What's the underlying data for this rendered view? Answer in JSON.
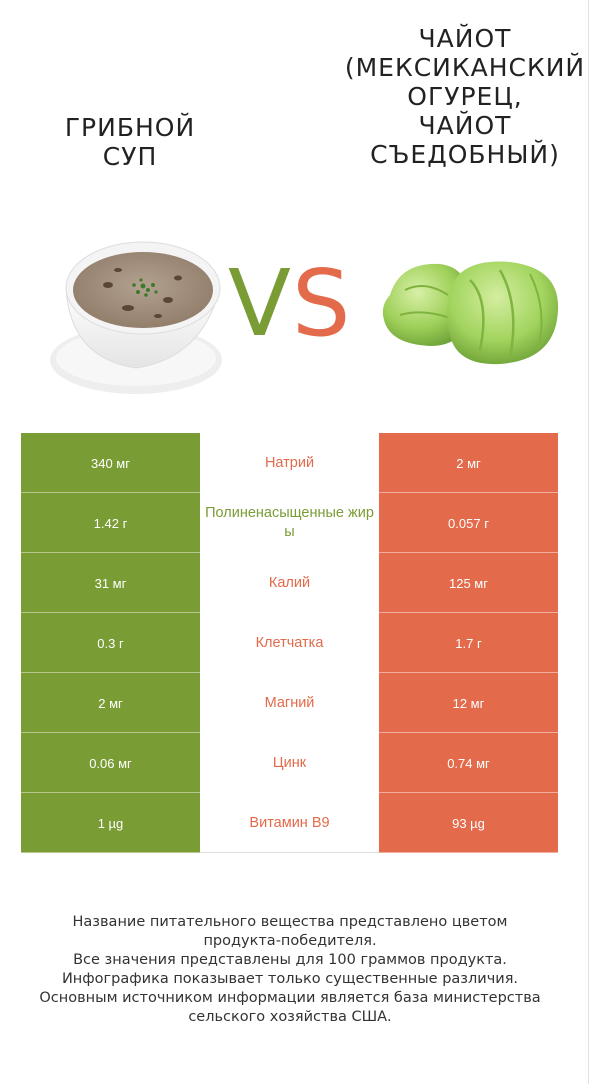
{
  "left_product": {
    "title_lines": [
      "ГРИБНОЙ",
      "СУП"
    ],
    "color": "#7a9c35",
    "image_icon": "soup-bowl-image"
  },
  "right_product": {
    "title_lines": [
      "ЧАЙОТ",
      "(МЕКСИКАНСКИЙ",
      "ОГУРЕЦ,",
      "ЧАЙОТ",
      "СЪЕДОБНЫЙ)"
    ],
    "color": "#e36a4a",
    "image_icon": "chayote-image"
  },
  "vs": {
    "v": "V",
    "s": "S"
  },
  "rows": [
    {
      "nutrient": "Натрий",
      "left": "340 мг",
      "right": "2 мг",
      "winner": "right"
    },
    {
      "nutrient": "Полиненасыщенные жиры",
      "left": "1.42 г",
      "right": "0.057 г",
      "winner": "left"
    },
    {
      "nutrient": "Калий",
      "left": "31 мг",
      "right": "125 мг",
      "winner": "right"
    },
    {
      "nutrient": "Клетчатка",
      "left": "0.3 г",
      "right": "1.7 г",
      "winner": "right"
    },
    {
      "nutrient": "Магний",
      "left": "2 мг",
      "right": "12 мг",
      "winner": "right"
    },
    {
      "nutrient": "Цинк",
      "left": "0.06 мг",
      "right": "0.74 мг",
      "winner": "right"
    },
    {
      "nutrient": "Витамин B9",
      "left": "1 µg",
      "right": "93 µg",
      "winner": "right"
    }
  ],
  "footer_lines": [
    "Название питательного вещества представлено цветом",
    "продукта-победителя.",
    "Все значения представлены для 100 граммов продукта.",
    "Инфографика показывает только существенные различия.",
    "Основным источником информации является база министерства",
    "сельского хозяйства США."
  ]
}
